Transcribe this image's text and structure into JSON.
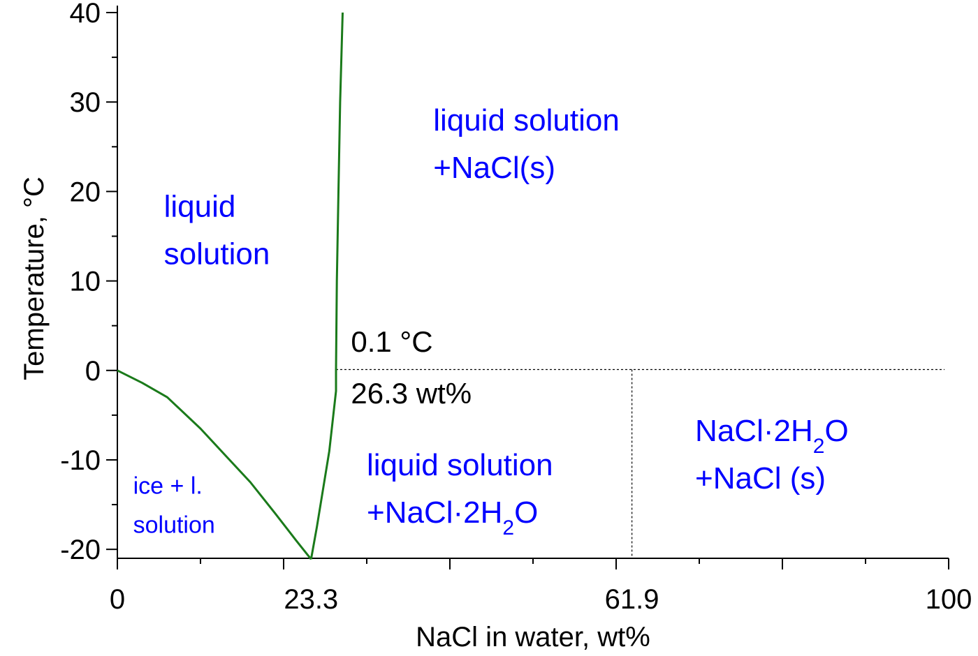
{
  "chart_data": {
    "type": "line",
    "xlabel": "NaCl in water, wt%",
    "ylabel": "Temperature, °C",
    "xlim": [
      0,
      100
    ],
    "ylim": [
      -21,
      40
    ],
    "x_ticks": [
      "0",
      "23.3",
      "61.9",
      "100"
    ],
    "y_ticks": [
      "40",
      "30",
      "20",
      "10",
      "0",
      "-10",
      "-20"
    ],
    "series": [
      {
        "color": "#1a7a1a",
        "points": [
          [
            0,
            0
          ],
          [
            3,
            -1.4
          ],
          [
            6,
            -3
          ],
          [
            10,
            -6.5
          ],
          [
            13,
            -9.5
          ],
          [
            16,
            -12.5
          ],
          [
            19,
            -16
          ],
          [
            21.5,
            -19
          ],
          [
            23.3,
            -21.1
          ]
        ]
      },
      {
        "color": "#1a7a1a",
        "points": [
          [
            23.3,
            -21.1
          ],
          [
            24,
            -17.5
          ],
          [
            25.5,
            -9
          ],
          [
            26.3,
            -2.3
          ],
          [
            26.3,
            0.1
          ],
          [
            26.4,
            10
          ],
          [
            26.6,
            20
          ],
          [
            26.8,
            30
          ],
          [
            27.1,
            40
          ]
        ]
      }
    ],
    "reference_lines": [
      {
        "from": [
          26.3,
          0.1
        ],
        "to": [
          99.5,
          0.1
        ],
        "style": "dotted"
      },
      {
        "from": [
          61.9,
          0.1
        ],
        "to": [
          61.9,
          -21
        ],
        "style": "dotted"
      }
    ],
    "annotations": [
      {
        "text": "0.1 °C",
        "x": 28.1,
        "y": 2.1
      },
      {
        "text": "26.3 wt%",
        "x": 28.1,
        "y": -3.7
      }
    ],
    "region_labels": [
      {
        "line1": "liquid",
        "line2": "solution",
        "x": 5.6,
        "y": 17.2,
        "size": "large"
      },
      {
        "line1": "liquid solution",
        "line2": "+NaCl(s)",
        "x": 38,
        "y": 26.8,
        "size": "large"
      },
      {
        "line1": "ice + l.",
        "line2": "solution",
        "x": 1.9,
        "y": -13.8,
        "size": "small"
      },
      {
        "line1": "liquid solution",
        "line2": "+NaCl·2H",
        "line2_sub": "2",
        "line2_tail": "O",
        "x": 30,
        "y": -11.7,
        "size": "large"
      },
      {
        "line1": "NaCl·2H",
        "line1_sub": "2",
        "line1_tail": "O",
        "line2": "+NaCl (s)",
        "x": 69.5,
        "y": -7.9,
        "size": "large"
      }
    ]
  }
}
